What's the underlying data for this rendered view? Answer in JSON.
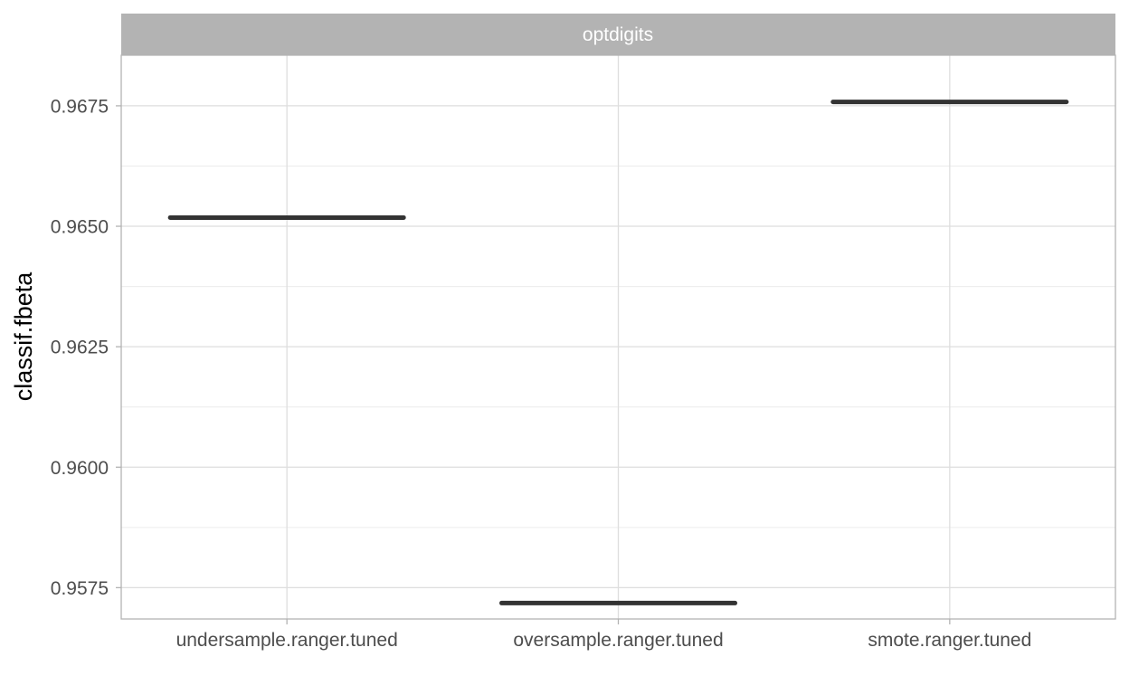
{
  "chart_data": {
    "type": "boxplot",
    "facet": "optdigits",
    "categories": [
      "undersample.ranger.tuned",
      "oversample.ranger.tuned",
      "smote.ranger.tuned"
    ],
    "values": [
      0.96518,
      0.95718,
      0.96758
    ],
    "ylabel": "classif.fbeta",
    "xlabel": "",
    "ylim": [
      0.95685,
      0.96855
    ],
    "yticks": [
      0.9575,
      0.96,
      0.9625,
      0.965,
      0.9675
    ],
    "ytick_labels": [
      "0.9575",
      "0.9600",
      "0.9625",
      "0.9650",
      "0.9675"
    ],
    "grid": true,
    "colors": {
      "strip_background": "#b3b3b3",
      "strip_text": "#ffffff",
      "panel_border": "#b3b3b3",
      "grid_major": "#dedede",
      "grid_minor": "#ececec",
      "box_line": "#333333",
      "tick_text": "#4d4d4d"
    }
  }
}
